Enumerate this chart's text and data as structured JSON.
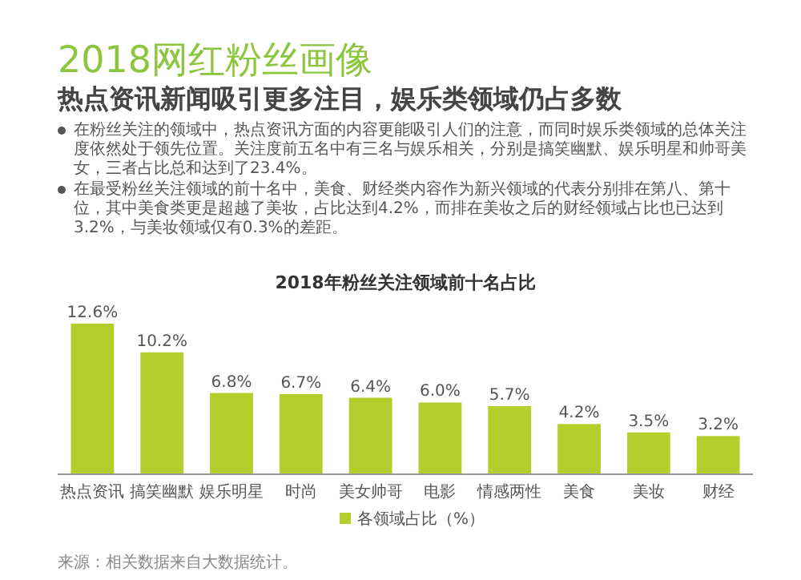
{
  "chart_data": {
    "type": "bar",
    "title": "2018网红粉丝画像",
    "subtitle": "热点资讯新闻吸引更多注目，娱乐类领域仍占多数",
    "annotations": [
      "在粉丝关注的领域中，热点资讯方面的内容更能吸引人们的注意，而同时娱乐类领域的总体关注度依然处于领先位置。关注度前五名中有三名与娱乐相关，分别是搞笑幽默、娱乐明星和帅哥美女，三者占比总和达到了23.4%。",
      "在最受粉丝关注领域的前十名中，美食、财经类内容作为新兴领域的代表分别排在第八、第十位，其中美食类更是超越了美妆，占比达到4.2%，而排在美妆之后的财经领域占比也已达到3.2%，与美妆领域仅有0.3%的差距。",
      "2018年粉丝关注领域前十名占比",
      "来源：相关数据来自大数据统计。"
    ],
    "categories": [
      "热点资讯",
      "搞笑幽默",
      "娱乐明星",
      "时尚",
      "美女帅哥",
      "电影",
      "情感两性",
      "美食",
      "美妆",
      "财经"
    ],
    "series": [
      {
        "name": "各领域占比（%）",
        "color": "#b3cf2e",
        "values": [
          12.6,
          10.2,
          6.8,
          6.7,
          6.4,
          6.0,
          5.7,
          4.2,
          3.5,
          3.2
        ],
        "value_labels": [
          "12.6%",
          "10.2%",
          "6.8%",
          "6.7%",
          "6.4%",
          "6.0%",
          "5.7%",
          "4.2%",
          "3.5%",
          "3.2%"
        ]
      }
    ],
    "legend": "bottom"
  }
}
